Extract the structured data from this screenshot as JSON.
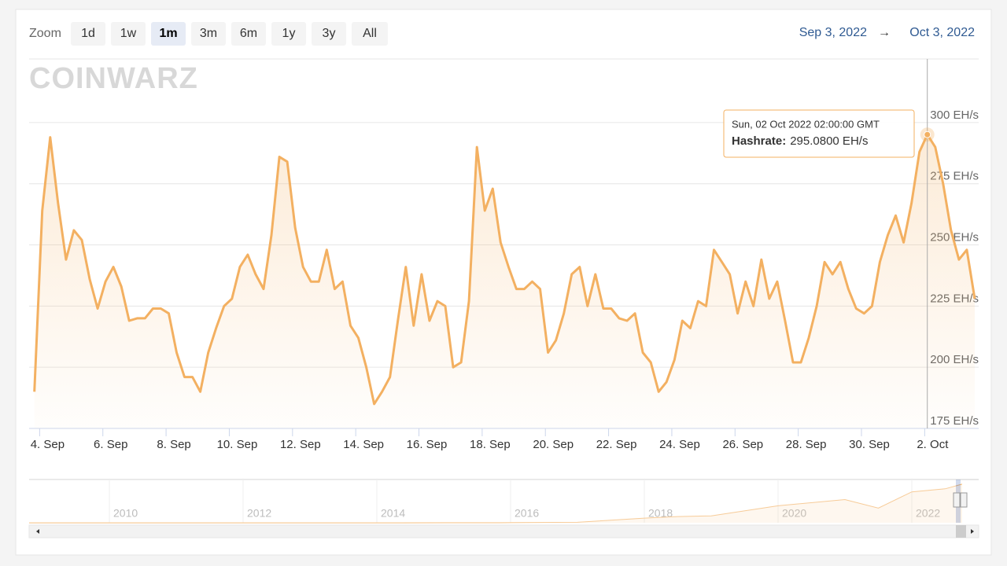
{
  "toolbar": {
    "zoom_label": "Zoom",
    "buttons": [
      "1d",
      "1w",
      "1m",
      "3m",
      "6m",
      "1y",
      "3y",
      "All"
    ],
    "selected": "1m",
    "range_from": "Sep 3, 2022",
    "range_arrow": "→",
    "range_to": "Oct 3, 2022"
  },
  "watermark": "COINWARZ",
  "chart_data": {
    "type": "line",
    "area": true,
    "grid": true,
    "x": [
      "2022-09-03T20:00",
      "2022-09-04T02:00",
      "2022-09-04T08:00",
      "2022-09-04T14:00",
      "2022-09-04T20:00",
      "2022-09-05T02:00",
      "2022-09-05T08:00",
      "2022-09-05T14:00",
      "2022-09-05T20:00",
      "2022-09-06T02:00",
      "2022-09-06T08:00",
      "2022-09-06T14:00",
      "2022-09-06T20:00",
      "2022-09-07T02:00",
      "2022-09-07T08:00",
      "2022-09-07T14:00",
      "2022-09-07T20:00",
      "2022-09-08T02:00",
      "2022-09-08T08:00",
      "2022-09-08T14:00",
      "2022-09-08T20:00",
      "2022-09-09T02:00",
      "2022-09-09T08:00",
      "2022-09-09T14:00",
      "2022-09-09T20:00",
      "2022-09-10T02:00",
      "2022-09-10T08:00",
      "2022-09-10T14:00",
      "2022-09-10T20:00",
      "2022-09-11T02:00",
      "2022-09-11T08:00",
      "2022-09-11T14:00",
      "2022-09-11T20:00",
      "2022-09-12T02:00",
      "2022-09-12T08:00",
      "2022-09-12T14:00",
      "2022-09-12T20:00",
      "2022-09-13T02:00",
      "2022-09-13T08:00",
      "2022-09-13T14:00",
      "2022-09-13T20:00",
      "2022-09-14T02:00",
      "2022-09-14T08:00",
      "2022-09-14T14:00",
      "2022-09-14T20:00",
      "2022-09-15T02:00",
      "2022-09-15T08:00",
      "2022-09-15T14:00",
      "2022-09-15T20:00",
      "2022-09-16T02:00",
      "2022-09-16T08:00",
      "2022-09-16T14:00",
      "2022-09-16T20:00",
      "2022-09-17T02:00",
      "2022-09-17T08:00",
      "2022-09-17T14:00",
      "2022-09-17T20:00",
      "2022-09-18T02:00",
      "2022-09-18T08:00",
      "2022-09-18T14:00",
      "2022-09-18T20:00",
      "2022-09-19T02:00",
      "2022-09-19T08:00",
      "2022-09-19T14:00",
      "2022-09-19T20:00",
      "2022-09-20T02:00",
      "2022-09-20T08:00",
      "2022-09-20T14:00",
      "2022-09-20T20:00",
      "2022-09-21T02:00",
      "2022-09-21T08:00",
      "2022-09-21T14:00",
      "2022-09-21T20:00",
      "2022-09-22T02:00",
      "2022-09-22T08:00",
      "2022-09-22T14:00",
      "2022-09-22T20:00",
      "2022-09-23T02:00",
      "2022-09-23T08:00",
      "2022-09-23T14:00",
      "2022-09-23T20:00",
      "2022-09-24T02:00",
      "2022-09-24T08:00",
      "2022-09-24T14:00",
      "2022-09-24T20:00",
      "2022-09-25T02:00",
      "2022-09-25T08:00",
      "2022-09-25T14:00",
      "2022-09-25T20:00",
      "2022-09-26T02:00",
      "2022-09-26T08:00",
      "2022-09-26T14:00",
      "2022-09-26T20:00",
      "2022-09-27T02:00",
      "2022-09-27T08:00",
      "2022-09-27T14:00",
      "2022-09-27T20:00",
      "2022-09-28T02:00",
      "2022-09-28T08:00",
      "2022-09-28T14:00",
      "2022-09-28T20:00",
      "2022-09-29T02:00",
      "2022-09-29T08:00",
      "2022-09-29T14:00",
      "2022-09-29T20:00",
      "2022-09-30T02:00",
      "2022-09-30T08:00",
      "2022-09-30T14:00",
      "2022-09-30T20:00",
      "2022-10-01T02:00",
      "2022-10-01T08:00",
      "2022-10-01T14:00",
      "2022-10-01T20:00",
      "2022-10-02T02:00",
      "2022-10-02T08:00",
      "2022-10-02T14:00",
      "2022-10-02T20:00",
      "2022-10-03T02:00",
      "2022-10-03T08:00",
      "2022-10-03T14:00"
    ],
    "series": [
      {
        "name": "Hashrate",
        "color": "#f3b061",
        "values": [
          190,
          264,
          294,
          267,
          244,
          256,
          252,
          236,
          224,
          235,
          241,
          233,
          219,
          220,
          220,
          224,
          224,
          222,
          206,
          196,
          196,
          190,
          206,
          216,
          225,
          228,
          241,
          246,
          238,
          232,
          254,
          286,
          284,
          257,
          241,
          235,
          235,
          248,
          232,
          235,
          217,
          212,
          200,
          185,
          190,
          196,
          219,
          241,
          217,
          238,
          219,
          227,
          225,
          200,
          202,
          227,
          290,
          264,
          273,
          251,
          241,
          232,
          232,
          235,
          232,
          206,
          211,
          222,
          238,
          241,
          225,
          238,
          224,
          224,
          220,
          219,
          222,
          206,
          202,
          190,
          194,
          203,
          219,
          216,
          227,
          225,
          248,
          243,
          238,
          222,
          235,
          225,
          244,
          228,
          235,
          219,
          202,
          202,
          212,
          225,
          243,
          238,
          243,
          232,
          224,
          222,
          225,
          243,
          254,
          262,
          251,
          267,
          288,
          295.08,
          290,
          275,
          256,
          244,
          248,
          228
        ]
      }
    ],
    "xlim": [
      "2022-09-03T16:00",
      "2022-10-03T17:00"
    ],
    "xticks": [
      {
        "value": "2022-09-04",
        "label": "4. Sep"
      },
      {
        "value": "2022-09-06",
        "label": "6. Sep"
      },
      {
        "value": "2022-09-08",
        "label": "8. Sep"
      },
      {
        "value": "2022-09-10",
        "label": "10. Sep"
      },
      {
        "value": "2022-09-12",
        "label": "12. Sep"
      },
      {
        "value": "2022-09-14",
        "label": "14. Sep"
      },
      {
        "value": "2022-09-16",
        "label": "16. Sep"
      },
      {
        "value": "2022-09-18",
        "label": "18. Sep"
      },
      {
        "value": "2022-09-20",
        "label": "20. Sep"
      },
      {
        "value": "2022-09-22",
        "label": "22. Sep"
      },
      {
        "value": "2022-09-24",
        "label": "24. Sep"
      },
      {
        "value": "2022-09-26",
        "label": "26. Sep"
      },
      {
        "value": "2022-09-28",
        "label": "28. Sep"
      },
      {
        "value": "2022-09-30",
        "label": "30. Sep"
      },
      {
        "value": "2022-10-02",
        "label": "2. Oct"
      }
    ],
    "ylim": [
      175,
      326
    ],
    "yticks": [
      {
        "value": 175,
        "label": "175 EH/s"
      },
      {
        "value": 200,
        "label": "200 EH/s"
      },
      {
        "value": 225,
        "label": "225 EH/s"
      },
      {
        "value": 250,
        "label": "250 EH/s"
      },
      {
        "value": 275,
        "label": "275 EH/s"
      },
      {
        "value": 300,
        "label": "300 EH/s"
      }
    ],
    "tooltip": {
      "point": 113,
      "header": "Sun, 02 Oct 2022 02:00:00 GMT",
      "series_label": "Hashrate:",
      "value_text": "295.0800 EH/s"
    }
  },
  "navigator": {
    "x": [
      2008.8,
      2010,
      2012,
      2013,
      2014,
      2015,
      2016,
      2017,
      2018,
      2018.5,
      2019,
      2020,
      2021,
      2021.5,
      2022,
      2022.5,
      2022.75
    ],
    "values": [
      0,
      0,
      0,
      0,
      0.1,
      0.4,
      1,
      3,
      30,
      40,
      45,
      110,
      150,
      95,
      200,
      220,
      250
    ],
    "xlim": [
      2008.8,
      2023
    ],
    "ylim": [
      0,
      280
    ],
    "xticks": [
      2010,
      2012,
      2014,
      2016,
      2018,
      2020,
      2022
    ],
    "color": "#f3b061"
  }
}
